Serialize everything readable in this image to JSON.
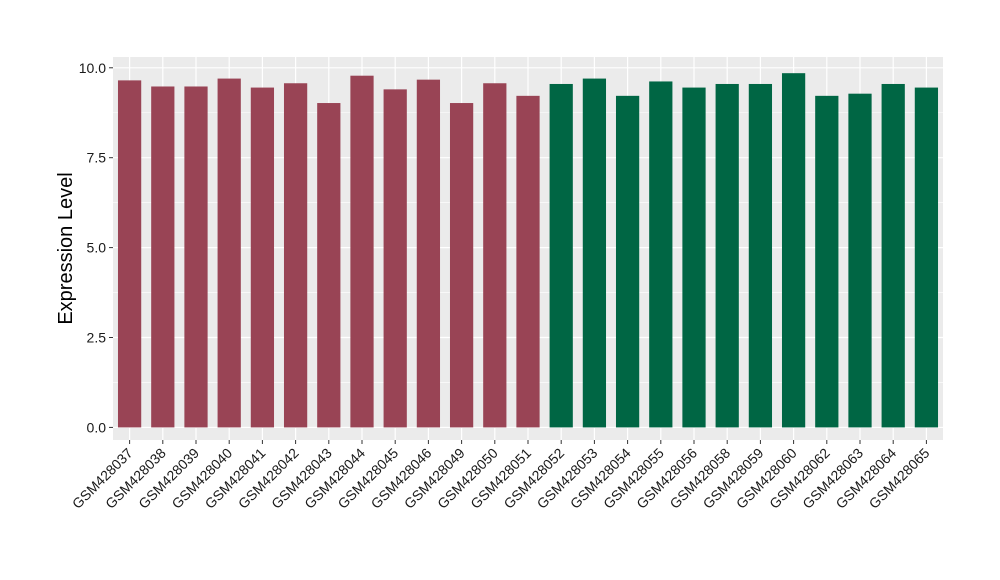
{
  "chart_data": {
    "type": "bar",
    "title": "",
    "xlabel": "",
    "ylabel": "Expression Level",
    "ylim": [
      -0.35,
      10.3
    ],
    "yticks": [
      0.0,
      2.5,
      5.0,
      7.5,
      10.0
    ],
    "ytick_labels": [
      "0.0",
      "2.5",
      "5.0",
      "7.5",
      "10.0"
    ],
    "grid": true,
    "panel_background": "#ebebeb",
    "grid_color": "#ffffff",
    "legend": "none",
    "categories": [
      "GSM428037",
      "GSM428038",
      "GSM428039",
      "GSM428040",
      "GSM428041",
      "GSM428042",
      "GSM428043",
      "GSM428044",
      "GSM428045",
      "GSM428046",
      "GSM428049",
      "GSM428050",
      "GSM428051",
      "GSM428052",
      "GSM428053",
      "GSM428054",
      "GSM428055",
      "GSM428056",
      "GSM428058",
      "GSM428059",
      "GSM428060",
      "GSM428062",
      "GSM428063",
      "GSM428064",
      "GSM428065"
    ],
    "values": [
      9.65,
      9.48,
      9.48,
      9.7,
      9.45,
      9.57,
      9.02,
      9.78,
      9.4,
      9.67,
      9.02,
      9.57,
      9.22,
      9.55,
      9.7,
      9.22,
      9.62,
      9.45,
      9.55,
      9.55,
      9.85,
      9.22,
      9.28,
      9.55,
      9.45
    ],
    "bar_colors": [
      "#994455",
      "#994455",
      "#994455",
      "#994455",
      "#994455",
      "#994455",
      "#994455",
      "#994455",
      "#994455",
      "#994455",
      "#994455",
      "#994455",
      "#994455",
      "#006644",
      "#006644",
      "#006644",
      "#006644",
      "#006644",
      "#006644",
      "#006644",
      "#006644",
      "#006644",
      "#006644",
      "#006644",
      "#006644"
    ]
  }
}
